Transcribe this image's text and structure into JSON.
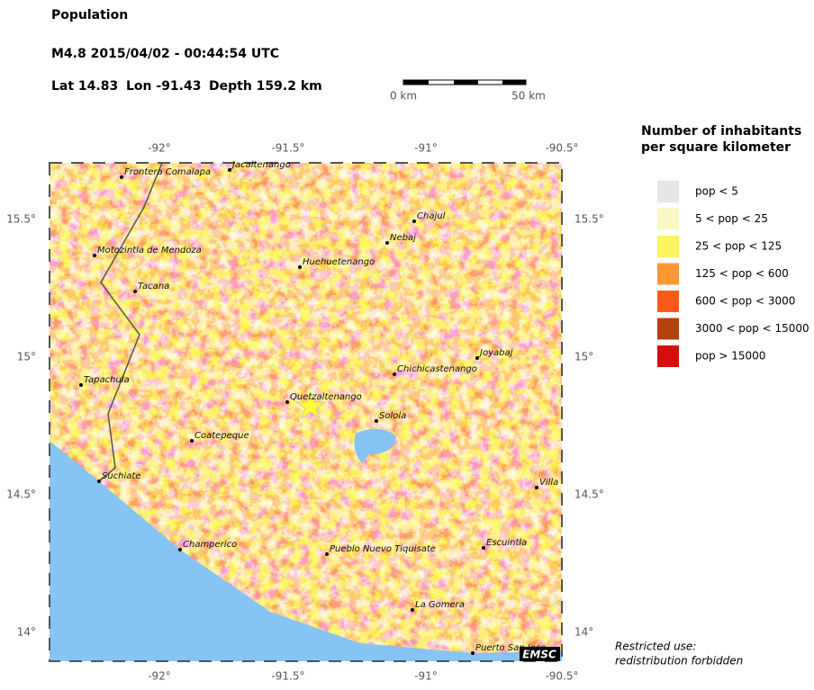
{
  "header": {
    "title": "Population",
    "event": "M4.8  2015/04/02 - 00:44:54 UTC",
    "lat": "Lat 14.83",
    "lon": "Lon -91.43",
    "depth": "Depth 159.2 km"
  },
  "scale_bar": {
    "start": "0 km",
    "end": "50 km"
  },
  "map": {
    "lon_labels": [
      "-92°",
      "-91.5°",
      "-91°",
      "-90.5°"
    ],
    "lat_labels": [
      "15.5°",
      "15°",
      "14.5°",
      "14°"
    ],
    "cities": [
      "Frontera Comalapa",
      "Jacaltenango",
      "Chajul",
      "Nebaj",
      "Motozintla de Mendoza",
      "Huehuetenango",
      "Tacana",
      "Joyabaj",
      "Chichicastenango",
      "Tapachula",
      "Quetzaltenango",
      "Solola",
      "Coatepeque",
      "Villa",
      "Suchiate",
      "Champerico",
      "Pueblo Nuevo Tiquisate",
      "Escuintla",
      "La Gomera",
      "Puerto San Jose"
    ],
    "badge": "EMSC"
  },
  "legend": {
    "title": [
      "Number of inhabitants",
      "per square kilometer"
    ],
    "items": [
      {
        "label": "pop < 5",
        "color": "#e6e6e6"
      },
      {
        "label": "5 < pop < 25",
        "color": "#fcf8c4"
      },
      {
        "label": "25 < pop < 125",
        "color": "#fcf55e"
      },
      {
        "label": "125 < pop < 600",
        "color": "#fd9933"
      },
      {
        "label": "600 < pop < 3000",
        "color": "#fd5a1a"
      },
      {
        "label": "3000 < pop < 15000",
        "color": "#b4420e"
      },
      {
        "label": "pop > 15000",
        "color": "#d40d0d"
      }
    ]
  },
  "footer": [
    "Restricted use:",
    "redistribution forbidden"
  ]
}
